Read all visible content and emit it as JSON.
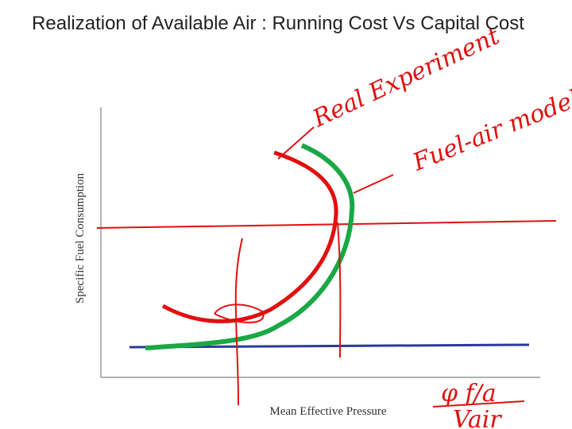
{
  "header": {
    "title": "Realization of Available Air : Running Cost Vs Capital Cost"
  },
  "axes": {
    "x_label": "Mean Effective Pressure",
    "y_label": "Specific Fuel Consumption"
  },
  "annotations": {
    "real": "Real Experiment",
    "model": "Fuel-air modelling",
    "phi": "φ f/a",
    "vair": "Vair"
  }
}
